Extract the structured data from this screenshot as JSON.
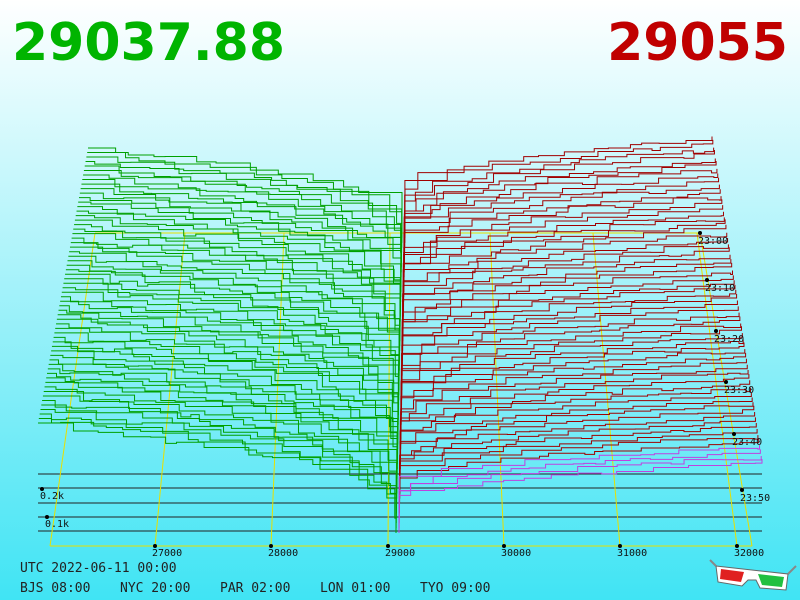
{
  "prices": {
    "bid": "29037.88",
    "ask": "29055"
  },
  "x_axis": {
    "ticks": [
      "27000",
      "28000",
      "29000",
      "30000",
      "31000",
      "32000"
    ]
  },
  "depth_axis": {
    "ticks": [
      "0.2k",
      "0.1k"
    ]
  },
  "time_axis": {
    "ticks": [
      "23:00",
      "23:10",
      "23:20",
      "23:30",
      "23:40",
      "23:50"
    ]
  },
  "footer": {
    "utc": "UTC 2022-06-11 00:00",
    "zones": [
      "BJS 08:00",
      "NYC 20:00",
      "PAR 02:00",
      "LON 01:00",
      "TYO 09:00"
    ]
  }
}
